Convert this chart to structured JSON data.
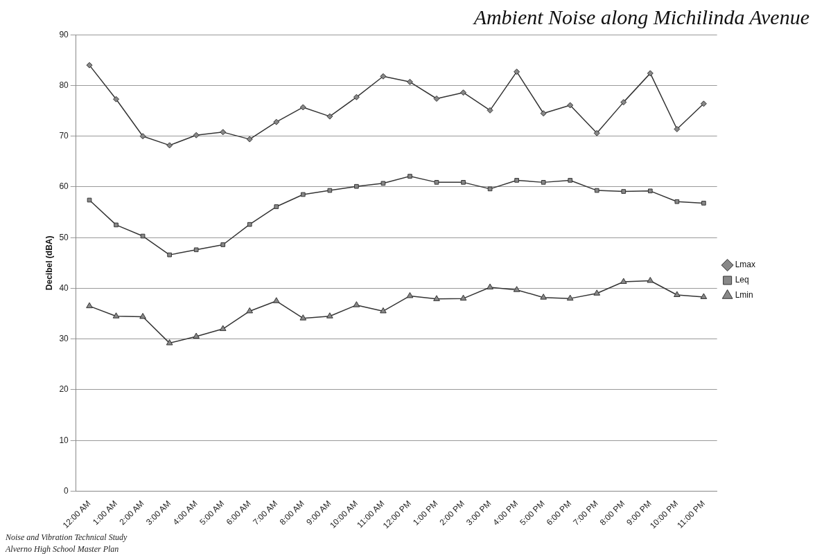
{
  "chart_data": {
    "type": "line",
    "title": "Ambient Noise along Michilinda Avenue",
    "ylabel": "Decibel (dBA)",
    "categories": [
      "12:00 AM",
      "1:00 AM",
      "2:00 AM",
      "3:00 AM",
      "4:00 AM",
      "5:00 AM",
      "6:00 AM",
      "7:00 AM",
      "8:00 AM",
      "9:00 AM",
      "10:00 AM",
      "11:00 AM",
      "12:00 PM",
      "1:00 PM",
      "2:00 PM",
      "3:00 PM",
      "4:00 PM",
      "5:00 PM",
      "6:00 PM",
      "7:00 PM",
      "8:00 PM",
      "9:00 PM",
      "10:00 PM",
      "11:00 PM"
    ],
    "series": [
      {
        "name": "Lmax",
        "color": "#333333",
        "marker": "diamond",
        "values": [
          84,
          77.3,
          70,
          68.2,
          70.2,
          70.8,
          69.4,
          72.8,
          75.7,
          73.9,
          77.7,
          81.8,
          80.7,
          77.4,
          78.6,
          75.1,
          82.7,
          74.5,
          76.1,
          70.6,
          76.7,
          82.4,
          71.4,
          76.4
        ]
      },
      {
        "name": "Leq",
        "color": "#333333",
        "marker": "square",
        "values": [
          57.4,
          52.5,
          50.3,
          46.6,
          47.6,
          48.6,
          52.6,
          56.1,
          58.5,
          59.3,
          60.1,
          60.7,
          62.1,
          60.9,
          60.9,
          59.6,
          61.3,
          60.9,
          61.3,
          59.3,
          59.1,
          59.2,
          57.1,
          56.8
        ]
      },
      {
        "name": "Lmin",
        "color": "#333333",
        "marker": "triangle",
        "values": [
          36.5,
          34.5,
          34.4,
          29.2,
          30.5,
          32,
          35.5,
          37.5,
          34.1,
          34.5,
          36.7,
          35.5,
          38.5,
          37.9,
          38,
          40.2,
          39.7,
          38.2,
          38,
          39,
          41.3,
          41.5,
          38.7,
          38.3
        ]
      }
    ],
    "ylim": [
      0,
      90
    ],
    "yticks": [
      0,
      10,
      20,
      30,
      40,
      50,
      60,
      70,
      80,
      90
    ],
    "grid": "y",
    "legend": "right",
    "line_style": "solid",
    "annotations": [
      "Noise and Vibration Technical Study",
      "Alverno High School Master Plan"
    ]
  }
}
